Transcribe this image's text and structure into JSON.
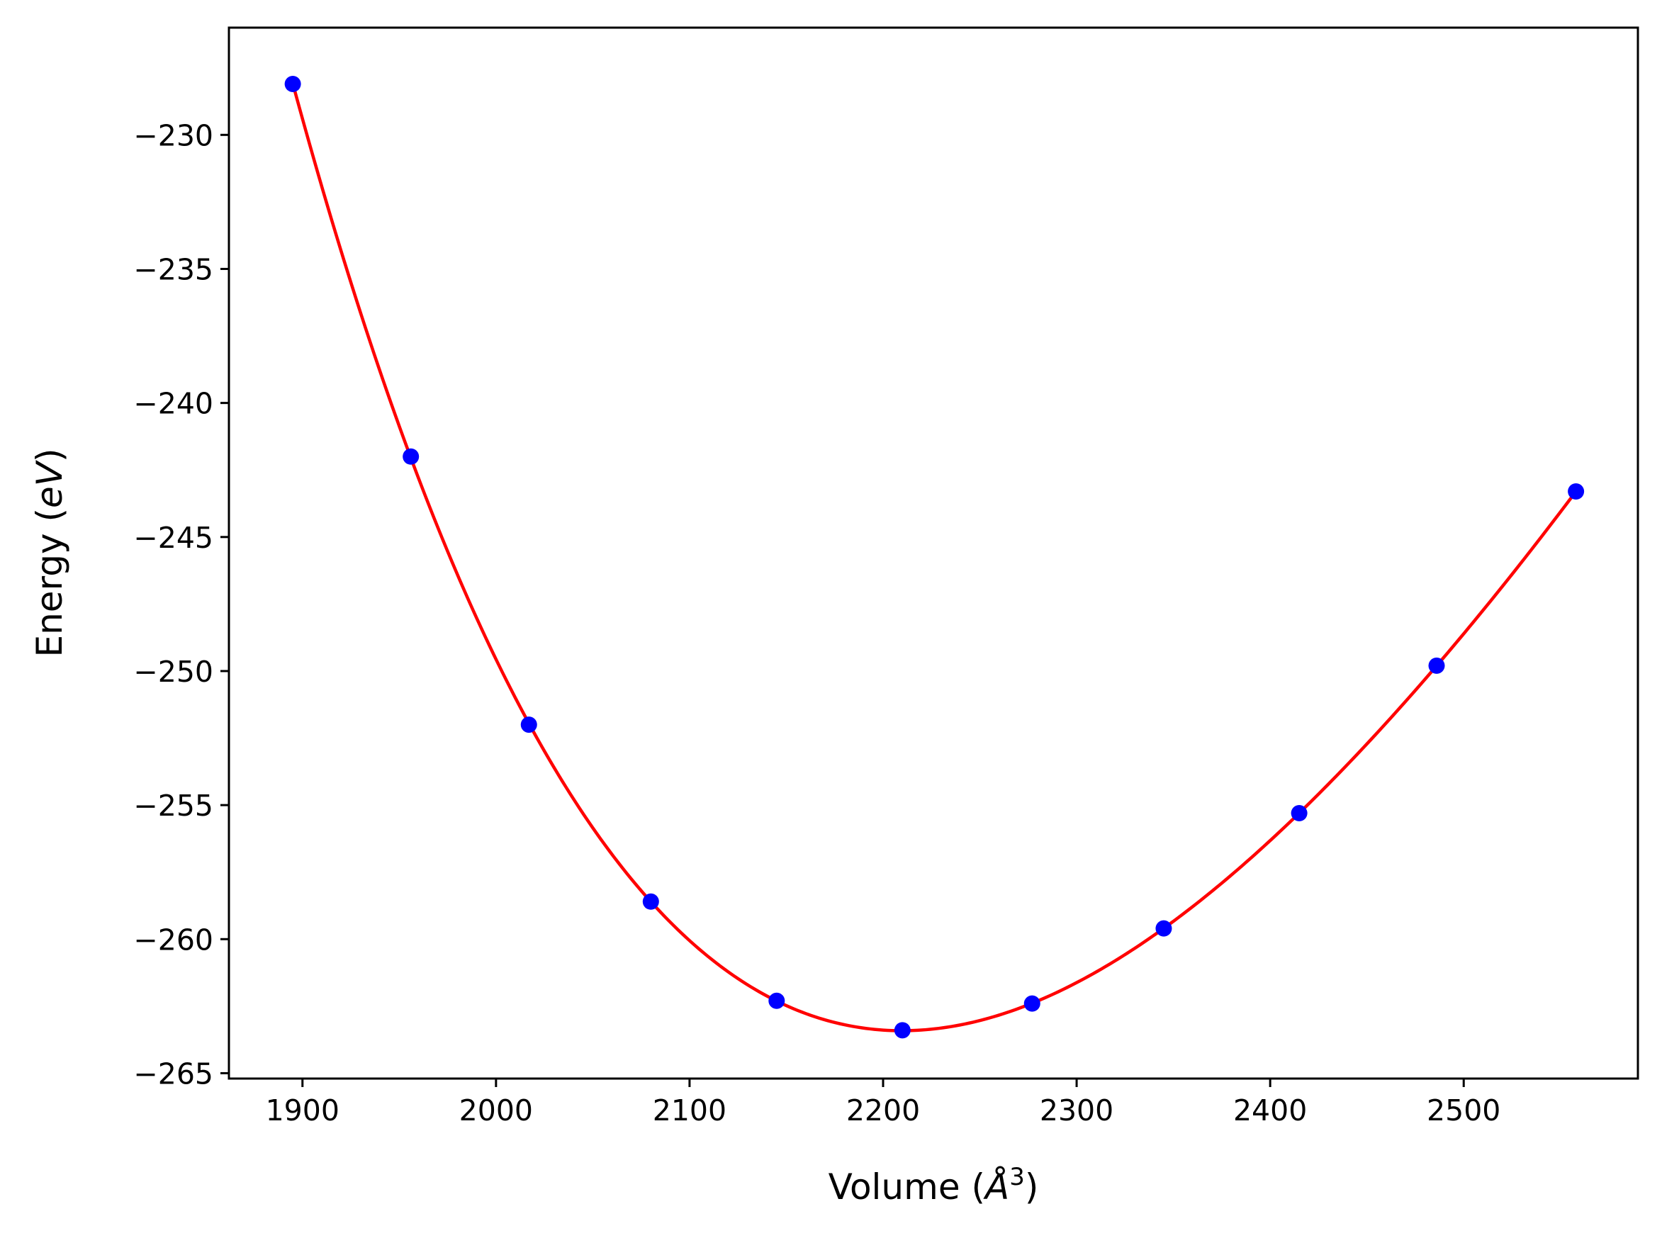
{
  "chart_data": {
    "type": "scatter",
    "title": "",
    "xlabel": {
      "prefix": "Volume (",
      "symbol": "Å",
      "exponent": "3",
      "suffix": ")"
    },
    "ylabel": {
      "prefix": "Energy (",
      "unit": "eV",
      "suffix": ")"
    },
    "xlim": [
      1862,
      2590
    ],
    "ylim": [
      -265.2,
      -226.0
    ],
    "xticks": [
      1900,
      2000,
      2100,
      2200,
      2300,
      2400,
      2500
    ],
    "yticks": [
      -230,
      -235,
      -240,
      -245,
      -250,
      -255,
      -260,
      -265
    ],
    "grid": false,
    "legend": "none",
    "points": {
      "color": "#0000ff",
      "x": [
        1895,
        1956,
        2017,
        2080,
        2145,
        2210,
        2277,
        2345,
        2415,
        2486,
        2558
      ],
      "y": [
        -228.1,
        -242.0,
        -252.0,
        -258.6,
        -262.3,
        -263.4,
        -262.4,
        -259.6,
        -255.3,
        -249.8,
        -243.3
      ]
    },
    "fit_curve": {
      "color": "#ff0000",
      "type": "smooth-fit"
    }
  }
}
